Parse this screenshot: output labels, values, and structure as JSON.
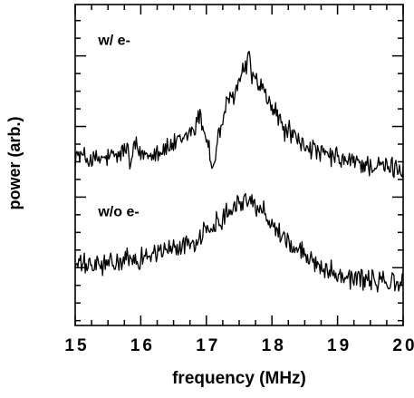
{
  "chart_data": {
    "type": "line",
    "title": "",
    "xlabel": "frequency (MHz)",
    "ylabel": "power (arb.)",
    "xlim": [
      15,
      20
    ],
    "ylim": [
      0,
      10
    ],
    "x_ticks": [
      "15",
      "16",
      "17",
      "18",
      "19",
      "20"
    ],
    "x_minor_step": 0.25,
    "y_ticks_major": [
      1.8,
      4.0,
      6.2,
      8.4
    ],
    "y_minor_step": 0.55,
    "grid": false,
    "legend": "none",
    "annotations": [
      {
        "text": "w/ e-",
        "x": 15.35,
        "y": 8.75
      },
      {
        "text": "w/o e-",
        "x": 15.35,
        "y": 3.4
      }
    ],
    "series": [
      {
        "x": [
          15.0,
          15.3,
          15.6,
          15.8,
          15.85,
          15.9,
          16.0,
          16.3,
          16.6,
          16.8,
          16.9,
          17.0,
          17.1,
          17.2,
          17.3,
          17.4,
          17.5,
          17.6,
          17.65,
          17.7,
          17.8,
          18.0,
          18.2,
          18.5,
          18.8,
          19.2,
          19.6,
          20.0
        ],
        "y": [
          5.3,
          5.15,
          5.25,
          5.5,
          4.9,
          5.6,
          5.35,
          5.45,
          5.7,
          6.1,
          6.5,
          5.9,
          4.9,
          6.0,
          6.8,
          7.1,
          7.6,
          8.1,
          8.3,
          7.8,
          7.5,
          6.8,
          6.1,
          5.6,
          5.3,
          5.1,
          4.95,
          4.9
        ]
      },
      {
        "x": [
          15.0,
          15.3,
          15.6,
          15.9,
          16.2,
          16.5,
          16.8,
          17.0,
          17.2,
          17.4,
          17.6,
          17.8,
          18.0,
          18.2,
          18.4,
          18.6,
          18.9,
          19.2,
          19.5,
          19.8,
          20.0
        ],
        "y": [
          1.9,
          1.85,
          1.95,
          2.05,
          2.25,
          2.4,
          2.6,
          2.9,
          3.3,
          3.75,
          3.9,
          3.7,
          3.2,
          2.7,
          2.3,
          2.05,
          1.7,
          1.5,
          1.4,
          1.35,
          1.3
        ]
      }
    ]
  }
}
